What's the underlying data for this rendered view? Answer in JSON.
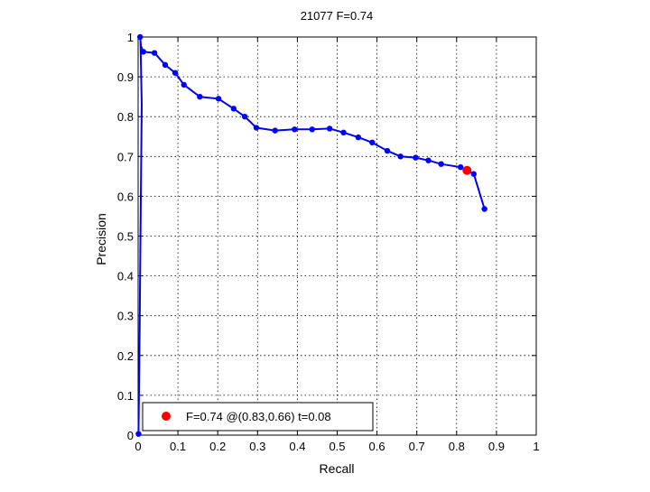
{
  "chart_data": {
    "type": "line",
    "title": "21077 F=0.74",
    "xlabel": "Recall",
    "ylabel": "Precision",
    "xlim": [
      0,
      1
    ],
    "ylim": [
      0,
      1
    ],
    "grid": true,
    "xticks": [
      "0",
      "0.1",
      "0.2",
      "0.3",
      "0.4",
      "0.5",
      "0.6",
      "0.7",
      "0.8",
      "0.9",
      "1"
    ],
    "yticks": [
      "0",
      "0.1",
      "0.2",
      "0.3",
      "0.4",
      "0.5",
      "0.6",
      "0.7",
      "0.8",
      "0.9",
      "1"
    ],
    "series_color": "#0000ff",
    "highlight_color": "#ff0000",
    "series": [
      {
        "x": [
          0.001,
          0.003,
          0.006,
          0.009,
          0.006,
          0.005,
          0.007,
          0.013,
          0.041,
          0.068,
          0.093,
          0.115,
          0.155,
          0.202,
          0.24,
          0.268,
          0.297,
          0.344,
          0.393,
          0.437,
          0.481,
          0.516,
          0.553,
          0.588,
          0.626,
          0.659,
          0.697,
          0.729,
          0.761,
          0.81,
          0.843,
          0.87
        ],
        "y": [
          0.003,
          0.17,
          0.5,
          0.83,
          0.99,
          1.0,
          0.978,
          0.963,
          0.96,
          0.93,
          0.91,
          0.88,
          0.85,
          0.845,
          0.82,
          0.8,
          0.772,
          0.765,
          0.768,
          0.768,
          0.77,
          0.76,
          0.748,
          0.735,
          0.714,
          0.7,
          0.697,
          0.69,
          0.681,
          0.673,
          0.656,
          0.568
        ],
        "markers": [
          0,
          5,
          7,
          8,
          9,
          10,
          11,
          12,
          13,
          14,
          15,
          16,
          17,
          18,
          19,
          20,
          21,
          22,
          23,
          24,
          25,
          26,
          27,
          28,
          29,
          30,
          31
        ]
      }
    ],
    "highlight_point": {
      "x": 0.826,
      "y": 0.665
    },
    "legend": {
      "label": "F=0.74 @(0.83,0.66) t=0.08",
      "position": "bottom-left"
    }
  }
}
